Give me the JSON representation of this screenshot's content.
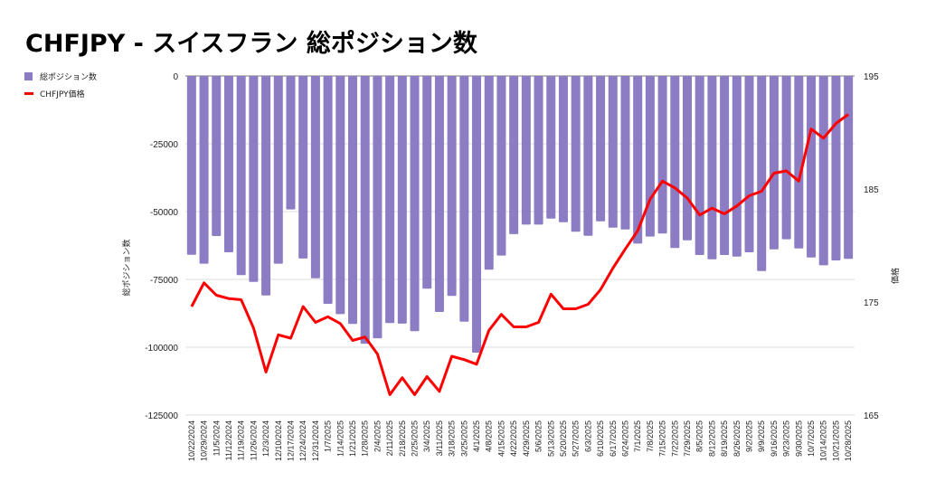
{
  "chart_data": {
    "type": "bar+line",
    "title": "CHFJPY - スイスフラン 総ポジション数",
    "legend": [
      "総ポジション数",
      "CHFJPY価格"
    ],
    "legend_position": "top-left",
    "ylabel_left": "総ポジション数",
    "ylabel_right": "価格",
    "ylim_left": [
      -125000,
      0
    ],
    "ylim_right": [
      165,
      195
    ],
    "yticks_left": [
      "0",
      "-25000",
      "-50000",
      "-75000",
      "-100000",
      "-125000"
    ],
    "yticks_left_values": [
      0,
      -25000,
      -50000,
      -75000,
      -100000,
      -125000
    ],
    "yticks_right": [
      "195",
      "185",
      "175",
      "165"
    ],
    "yticks_right_values": [
      195,
      185,
      175,
      165
    ],
    "grid": true,
    "colors": {
      "bars": "#8c7cc3",
      "line": "#ff0000"
    },
    "categories": [
      "10/22/2024",
      "10/29/2024",
      "11/5/2024",
      "11/12/2024",
      "11/19/2024",
      "11/26/2024",
      "12/3/2024",
      "12/10/2024",
      "12/17/2024",
      "12/24/2024",
      "12/31/2024",
      "1/7/2025",
      "1/14/2025",
      "1/21/2025",
      "1/28/2025",
      "2/4/2025",
      "2/11/2025",
      "2/18/2025",
      "2/25/2025",
      "3/4/2025",
      "3/11/2025",
      "3/18/2025",
      "3/25/2025",
      "4/1/2025",
      "4/8/2025",
      "4/15/2025",
      "4/22/2025",
      "4/29/2025",
      "5/6/2025",
      "5/13/2025",
      "5/20/2025",
      "5/27/2025",
      "6/3/2025",
      "6/10/2025",
      "6/17/2025",
      "6/24/2025",
      "7/1/2025",
      "7/8/2025",
      "7/15/2025",
      "7/22/2025",
      "7/29/2025",
      "8/5/2025",
      "8/12/2025",
      "8/19/2025",
      "8/26/2025",
      "9/2/2025",
      "9/9/2025",
      "9/16/2025",
      "9/23/2025",
      "9/30/2025",
      "10/7/2025",
      "10/14/2025",
      "10/21/2025",
      "10/28/2025"
    ],
    "series": [
      {
        "name": "総ポジション数",
        "axis": "left",
        "type": "bar",
        "values": [
          -65900,
          -69200,
          -59000,
          -65000,
          -73400,
          -75900,
          -80900,
          -69200,
          -49200,
          -67300,
          -74600,
          -84000,
          -87800,
          -91400,
          -98700,
          -96700,
          -91100,
          -91300,
          -94100,
          -78400,
          -87000,
          -81100,
          -90600,
          -102000,
          -71400,
          -66200,
          -58300,
          -54800,
          -54800,
          -52600,
          -53900,
          -57400,
          -58900,
          -53600,
          -55900,
          -56600,
          -61800,
          -59200,
          -58100,
          -63400,
          -60600,
          -66000,
          -67600,
          -66000,
          -66600,
          -65000,
          -71900,
          -63900,
          -60200,
          -63600,
          -66900,
          -69800,
          -68000,
          -67400
        ]
      },
      {
        "name": "CHFJPY価格",
        "axis": "right",
        "type": "line",
        "values": [
          174.6,
          176.7,
          175.6,
          175.3,
          175.2,
          172.7,
          168.8,
          172.1,
          171.8,
          174.6,
          173.2,
          173.7,
          173.1,
          171.6,
          171.9,
          170.4,
          166.8,
          168.3,
          166.8,
          168.4,
          167.1,
          170.2,
          169.9,
          169.5,
          172.5,
          173.9,
          172.8,
          172.8,
          173.2,
          175.7,
          174.4,
          174.4,
          174.8,
          176.1,
          178.0,
          179.7,
          181.3,
          184.1,
          185.7,
          185.1,
          184.2,
          182.7,
          183.3,
          182.8,
          183.5,
          184.4,
          184.8,
          186.4,
          186.6,
          185.7,
          190.3,
          189.5,
          190.8,
          191.6
        ]
      }
    ]
  }
}
